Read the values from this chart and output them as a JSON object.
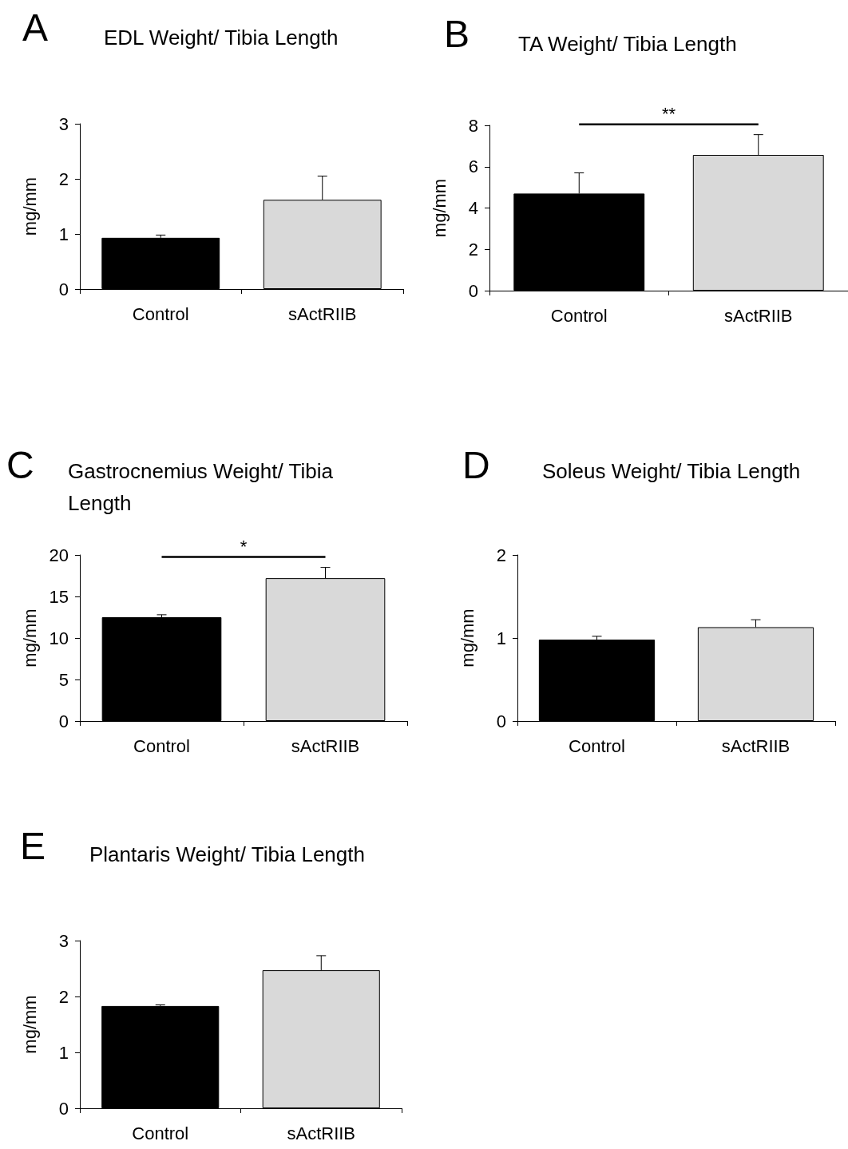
{
  "chart_data": [
    {
      "type": "bar",
      "title": "EDL Weight/ Tibia Length",
      "ylabel": "mg/mm",
      "annotations": [
        "A"
      ],
      "categories": [
        "Control",
        "sActRIIB"
      ],
      "values": [
        0.93,
        1.62
      ],
      "colors": [
        "#000000",
        "#d9d9d9"
      ],
      "errors": [
        [
          0.93,
          0.98
        ],
        [
          1.62,
          2.05
        ]
      ],
      "ylim": [
        0,
        3
      ],
      "yticks": [
        0,
        1,
        2,
        3
      ],
      "grid": false
    },
    {
      "type": "bar",
      "title": "TA Weight/ Tibia Length",
      "ylabel": "mg/mm",
      "annotations": [
        "B",
        "**"
      ],
      "categories": [
        "Control",
        "sActRIIB"
      ],
      "values": [
        4.7,
        6.57
      ],
      "colors": [
        "#000000",
        "#d9d9d9"
      ],
      "errors": [
        [
          4.7,
          5.7
        ],
        [
          6.57,
          7.55
        ]
      ],
      "ylim": [
        0,
        8
      ],
      "yticks": [
        0,
        2,
        4,
        6,
        8
      ],
      "grid": false
    },
    {
      "type": "bar",
      "title": "Gastrocnemius Weight/ Tibia Length",
      "ylabel": "mg/mm",
      "annotations": [
        "C",
        "*"
      ],
      "categories": [
        "Control",
        "sActRIIB"
      ],
      "values": [
        12.5,
        17.2
      ],
      "colors": [
        "#000000",
        "#d9d9d9"
      ],
      "errors": [
        [
          12.5,
          12.8
        ],
        [
          17.2,
          18.5
        ]
      ],
      "ylim": [
        0,
        20
      ],
      "yticks": [
        0,
        5,
        10,
        15,
        20
      ],
      "grid": false
    },
    {
      "type": "bar",
      "title": "Soleus Weight/ Tibia Length",
      "ylabel": "mg/mm",
      "annotations": [
        "D"
      ],
      "categories": [
        "Control",
        "sActRIIB"
      ],
      "values": [
        0.98,
        1.13
      ],
      "colors": [
        "#000000",
        "#d9d9d9"
      ],
      "errors": [
        [
          0.98,
          1.02
        ],
        [
          1.13,
          1.22
        ]
      ],
      "ylim": [
        0,
        2
      ],
      "yticks": [
        0,
        1,
        2
      ],
      "grid": false
    },
    {
      "type": "bar",
      "title": "Plantaris Weight/ Tibia Length",
      "ylabel": "mg/mm",
      "annotations": [
        "E"
      ],
      "categories": [
        "Control",
        "sActRIIB"
      ],
      "values": [
        1.83,
        2.47
      ],
      "colors": [
        "#000000",
        "#d9d9d9"
      ],
      "errors": [
        [
          1.83,
          1.85
        ],
        [
          2.47,
          2.73
        ]
      ],
      "ylim": [
        0,
        3
      ],
      "yticks": [
        0,
        1,
        2,
        3
      ],
      "grid": false
    }
  ]
}
